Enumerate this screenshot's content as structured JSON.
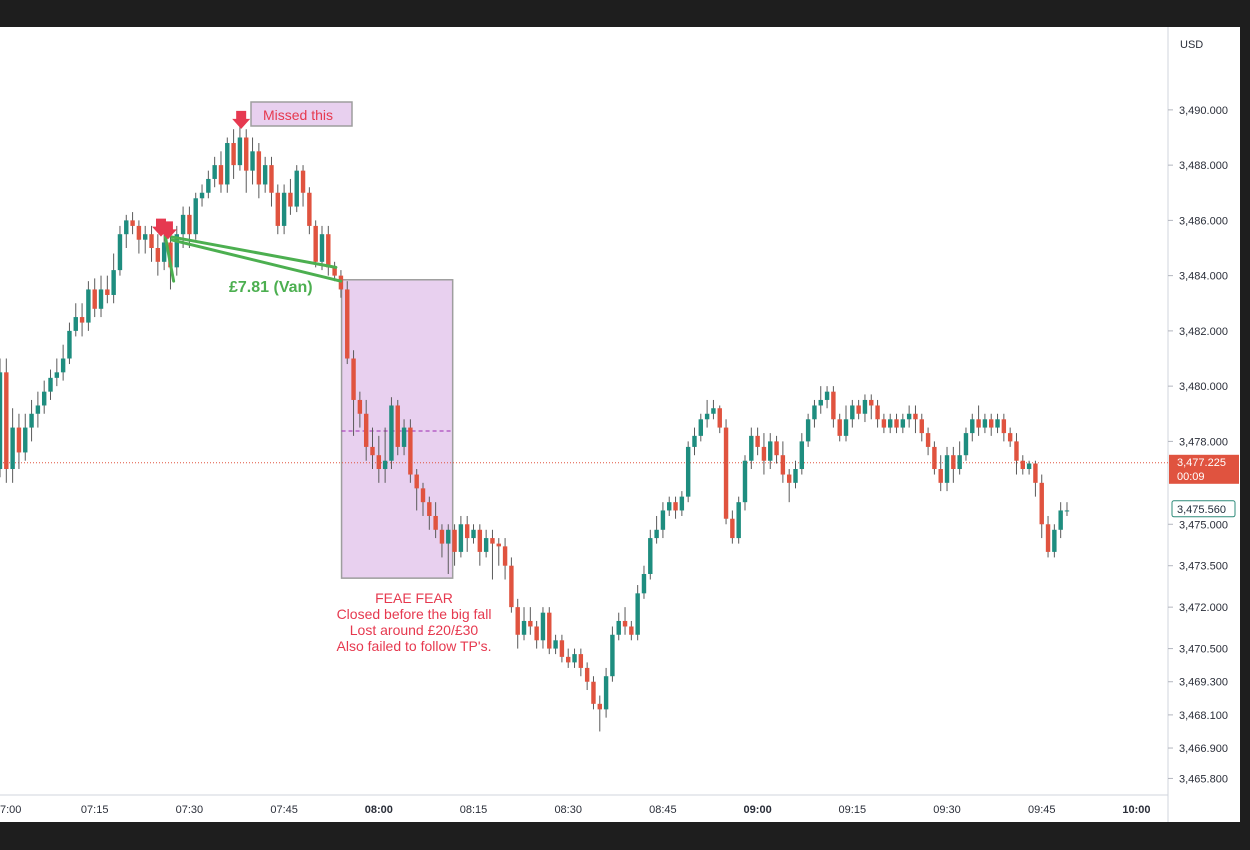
{
  "chart_data": {
    "type": "candlestick",
    "currency_label": "USD",
    "y_range": [
      3465.2,
      3493.0
    ],
    "x_range_minutes": [
      420,
      605
    ],
    "price_ticks": [
      "3,490.000",
      "3,488.000",
      "3,486.000",
      "3,484.000",
      "3,482.000",
      "3,480.000",
      "3,478.000",
      "3,475.000",
      "3,473.500",
      "3,472.000",
      "3,470.500",
      "3,469.300",
      "3,468.100",
      "3,466.900",
      "3,465.800"
    ],
    "time_ticks": [
      {
        "label": "7:00",
        "t": 420,
        "bold": false
      },
      {
        "label": "07:15",
        "t": 435,
        "bold": false
      },
      {
        "label": "07:30",
        "t": 450,
        "bold": false
      },
      {
        "label": "07:45",
        "t": 465,
        "bold": false
      },
      {
        "label": "08:00",
        "t": 480,
        "bold": true
      },
      {
        "label": "08:15",
        "t": 495,
        "bold": false
      },
      {
        "label": "08:30",
        "t": 510,
        "bold": false
      },
      {
        "label": "08:45",
        "t": 525,
        "bold": false
      },
      {
        "label": "09:00",
        "t": 540,
        "bold": true
      },
      {
        "label": "09:15",
        "t": 555,
        "bold": false
      },
      {
        "label": "09:30",
        "t": 570,
        "bold": false
      },
      {
        "label": "09:45",
        "t": 585,
        "bold": false
      },
      {
        "label": "10:00",
        "t": 600,
        "bold": true
      }
    ],
    "last_price": {
      "label": "3,477.225",
      "countdown": "00:09",
      "value": 3477.225,
      "color": "#e0533f"
    },
    "crosshair_price": {
      "label": "3,475.560",
      "value": 3475.56,
      "color": "#2e8b7a"
    },
    "colors": {
      "up": "#1e8d7f",
      "down": "#e0533f",
      "wick": "#5a5a5a",
      "box_fill": "#e8d0ef",
      "box_stroke": "#9e9e9e",
      "trend_line": "#4caf50",
      "arrow": "#e63950",
      "annotation_text": "#e6394f"
    },
    "candles": [
      [
        420,
        3477.0,
        3480.5,
        3476.7,
        3481.0
      ],
      [
        421,
        3480.5,
        3477.0,
        3476.5,
        3481.0
      ],
      [
        422,
        3477.0,
        3478.5,
        3476.5,
        3479.2
      ],
      [
        423,
        3478.5,
        3477.6,
        3477.0,
        3479.0
      ],
      [
        424,
        3477.6,
        3478.5,
        3477.3,
        3479.0
      ],
      [
        425,
        3478.5,
        3479.0,
        3478.0,
        3479.5
      ],
      [
        426,
        3479.0,
        3479.3,
        3478.5,
        3479.8
      ],
      [
        427,
        3479.3,
        3479.8,
        3479.0,
        3480.2
      ],
      [
        428,
        3479.8,
        3480.3,
        3479.5,
        3480.6
      ],
      [
        429,
        3480.3,
        3480.5,
        3480.0,
        3481.0
      ],
      [
        430,
        3480.5,
        3481.0,
        3480.2,
        3481.5
      ],
      [
        431,
        3481.0,
        3482.0,
        3480.8,
        3482.3
      ],
      [
        432,
        3482.0,
        3482.5,
        3481.8,
        3483.0
      ],
      [
        433,
        3482.5,
        3482.3,
        3481.8,
        3483.0
      ],
      [
        434,
        3482.3,
        3483.5,
        3482.0,
        3483.8
      ],
      [
        435,
        3483.5,
        3482.8,
        3482.5,
        3483.9
      ],
      [
        436,
        3482.8,
        3483.5,
        3482.5,
        3484.0
      ],
      [
        437,
        3483.5,
        3483.3,
        3483.0,
        3484.0
      ],
      [
        438,
        3483.3,
        3484.2,
        3483.0,
        3484.8
      ],
      [
        439,
        3484.2,
        3485.5,
        3484.0,
        3485.8
      ],
      [
        440,
        3485.5,
        3486.0,
        3485.0,
        3486.2
      ],
      [
        441,
        3486.0,
        3485.8,
        3485.5,
        3486.3
      ],
      [
        442,
        3485.8,
        3485.3,
        3484.8,
        3486.0
      ],
      [
        443,
        3485.3,
        3485.5,
        3484.8,
        3485.8
      ],
      [
        444,
        3485.5,
        3485.0,
        3484.5,
        3485.8
      ],
      [
        445,
        3485.0,
        3484.5,
        3484.0,
        3485.5
      ],
      [
        446,
        3484.5,
        3485.2,
        3484.2,
        3485.5
      ],
      [
        447,
        3485.2,
        3484.3,
        3483.5,
        3485.5
      ],
      [
        448,
        3484.3,
        3485.5,
        3484.0,
        3485.8
      ],
      [
        449,
        3485.5,
        3486.2,
        3485.0,
        3486.5
      ],
      [
        450,
        3486.2,
        3485.5,
        3485.0,
        3486.5
      ],
      [
        451,
        3485.5,
        3486.8,
        3485.3,
        3487.0
      ],
      [
        452,
        3486.8,
        3487.0,
        3486.5,
        3487.3
      ],
      [
        453,
        3487.0,
        3487.5,
        3486.8,
        3487.8
      ],
      [
        454,
        3487.5,
        3488.0,
        3487.2,
        3488.3
      ],
      [
        455,
        3488.0,
        3487.3,
        3487.0,
        3488.5
      ],
      [
        456,
        3487.3,
        3488.8,
        3487.0,
        3489.0
      ],
      [
        457,
        3488.8,
        3488.0,
        3487.5,
        3489.3
      ],
      [
        458,
        3488.0,
        3489.0,
        3487.8,
        3489.5
      ],
      [
        459,
        3489.0,
        3487.8,
        3487.0,
        3489.3
      ],
      [
        460,
        3487.8,
        3488.5,
        3487.3,
        3489.0
      ],
      [
        461,
        3488.5,
        3487.3,
        3486.8,
        3488.8
      ],
      [
        462,
        3487.3,
        3488.0,
        3487.0,
        3488.3
      ],
      [
        463,
        3488.0,
        3487.0,
        3486.5,
        3488.3
      ],
      [
        464,
        3487.0,
        3485.8,
        3485.5,
        3487.3
      ],
      [
        465,
        3485.8,
        3487.0,
        3485.5,
        3487.3
      ],
      [
        466,
        3487.0,
        3486.5,
        3486.2,
        3487.5
      ],
      [
        467,
        3486.5,
        3487.8,
        3486.3,
        3488.0
      ],
      [
        468,
        3487.8,
        3487.0,
        3486.5,
        3488.0
      ],
      [
        469,
        3487.0,
        3485.8,
        3485.5,
        3487.2
      ],
      [
        470,
        3485.8,
        3484.5,
        3484.3,
        3486.0
      ],
      [
        471,
        3484.5,
        3485.5,
        3484.2,
        3485.8
      ],
      [
        472,
        3485.5,
        3484.3,
        3484.0,
        3485.8
      ],
      [
        473,
        3484.3,
        3484.0,
        3483.8,
        3484.5
      ],
      [
        474,
        3484.0,
        3483.5,
        3483.2,
        3484.2
      ],
      [
        475,
        3483.5,
        3481.0,
        3480.8,
        3483.8
      ],
      [
        476,
        3481.0,
        3479.5,
        3478.2,
        3481.3
      ],
      [
        477,
        3479.5,
        3479.0,
        3478.5,
        3479.8
      ],
      [
        478,
        3479.0,
        3477.8,
        3477.3,
        3479.5
      ],
      [
        479,
        3477.8,
        3477.5,
        3477.0,
        3478.5
      ],
      [
        480,
        3477.5,
        3477.0,
        3476.5,
        3478.2
      ],
      [
        481,
        3477.0,
        3477.3,
        3476.5,
        3478.5
      ],
      [
        482,
        3477.3,
        3479.3,
        3477.0,
        3479.6
      ],
      [
        483,
        3479.3,
        3477.8,
        3477.5,
        3479.5
      ],
      [
        484,
        3477.8,
        3478.5,
        3477.5,
        3478.8
      ],
      [
        485,
        3478.5,
        3476.8,
        3476.5,
        3478.8
      ],
      [
        486,
        3476.8,
        3476.3,
        3475.5,
        3477.0
      ],
      [
        487,
        3476.3,
        3475.8,
        3475.3,
        3476.5
      ],
      [
        488,
        3475.8,
        3475.3,
        3474.8,
        3476.0
      ],
      [
        489,
        3475.3,
        3474.8,
        3474.5,
        3475.8
      ],
      [
        490,
        3474.8,
        3474.3,
        3473.8,
        3475.0
      ],
      [
        491,
        3474.3,
        3474.8,
        3473.2,
        3475.0
      ],
      [
        492,
        3474.8,
        3474.0,
        3473.5,
        3475.0
      ],
      [
        493,
        3474.0,
        3475.0,
        3473.8,
        3475.3
      ],
      [
        494,
        3475.0,
        3474.5,
        3474.0,
        3475.3
      ],
      [
        495,
        3474.5,
        3474.8,
        3474.3,
        3475.0
      ],
      [
        496,
        3474.8,
        3474.0,
        3473.5,
        3475.0
      ],
      [
        497,
        3474.0,
        3474.5,
        3473.8,
        3474.8
      ],
      [
        498,
        3474.5,
        3474.3,
        3473.0,
        3474.8
      ],
      [
        499,
        3474.3,
        3474.2,
        3473.5,
        3474.5
      ],
      [
        500,
        3474.2,
        3473.5,
        3473.0,
        3474.5
      ],
      [
        501,
        3473.5,
        3472.0,
        3471.8,
        3473.8
      ],
      [
        502,
        3472.0,
        3471.0,
        3470.5,
        3472.3
      ],
      [
        503,
        3471.0,
        3471.5,
        3470.8,
        3472.0
      ],
      [
        504,
        3471.5,
        3471.3,
        3471.0,
        3472.0
      ],
      [
        505,
        3471.3,
        3470.8,
        3470.5,
        3471.5
      ],
      [
        506,
        3470.8,
        3471.8,
        3470.5,
        3472.0
      ],
      [
        507,
        3471.8,
        3470.5,
        3470.3,
        3472.0
      ],
      [
        508,
        3470.5,
        3470.8,
        3470.3,
        3471.0
      ],
      [
        509,
        3470.8,
        3470.2,
        3470.0,
        3471.0
      ],
      [
        510,
        3470.2,
        3470.0,
        3469.8,
        3470.5
      ],
      [
        511,
        3470.0,
        3470.3,
        3469.8,
        3470.5
      ],
      [
        512,
        3470.3,
        3469.8,
        3469.5,
        3470.5
      ],
      [
        513,
        3469.8,
        3469.3,
        3469.0,
        3470.0
      ],
      [
        514,
        3469.3,
        3468.5,
        3468.3,
        3469.5
      ],
      [
        515,
        3468.5,
        3468.3,
        3467.5,
        3468.8
      ],
      [
        516,
        3468.3,
        3469.5,
        3468.0,
        3469.8
      ],
      [
        517,
        3469.5,
        3471.0,
        3469.3,
        3471.3
      ],
      [
        518,
        3471.0,
        3471.5,
        3470.8,
        3471.8
      ],
      [
        519,
        3471.5,
        3471.3,
        3471.0,
        3472.0
      ],
      [
        520,
        3471.3,
        3471.0,
        3470.8,
        3471.5
      ],
      [
        521,
        3471.0,
        3472.5,
        3470.8,
        3472.8
      ],
      [
        522,
        3472.5,
        3473.2,
        3472.3,
        3473.5
      ],
      [
        523,
        3473.2,
        3474.5,
        3473.0,
        3474.8
      ],
      [
        524,
        3474.5,
        3474.8,
        3474.3,
        3475.3
      ],
      [
        525,
        3474.8,
        3475.5,
        3474.5,
        3475.8
      ],
      [
        526,
        3475.5,
        3475.8,
        3475.3,
        3476.0
      ],
      [
        527,
        3475.8,
        3475.5,
        3475.2,
        3476.0
      ],
      [
        528,
        3475.5,
        3476.0,
        3475.3,
        3476.2
      ],
      [
        529,
        3476.0,
        3477.8,
        3475.8,
        3478.0
      ],
      [
        530,
        3477.8,
        3478.2,
        3477.5,
        3478.5
      ],
      [
        531,
        3478.2,
        3478.8,
        3478.0,
        3479.0
      ],
      [
        532,
        3478.8,
        3479.0,
        3478.5,
        3479.5
      ],
      [
        533,
        3479.0,
        3479.2,
        3478.8,
        3479.5
      ],
      [
        534,
        3479.2,
        3478.5,
        3478.3,
        3479.3
      ],
      [
        535,
        3478.5,
        3475.2,
        3475.0,
        3478.8
      ],
      [
        536,
        3475.2,
        3474.5,
        3474.3,
        3475.5
      ],
      [
        537,
        3474.5,
        3475.8,
        3474.3,
        3476.0
      ],
      [
        538,
        3475.8,
        3477.3,
        3475.5,
        3477.5
      ],
      [
        539,
        3477.3,
        3478.2,
        3477.0,
        3478.5
      ],
      [
        540,
        3478.2,
        3477.8,
        3477.5,
        3478.5
      ],
      [
        541,
        3477.8,
        3477.3,
        3476.8,
        3478.3
      ],
      [
        542,
        3477.3,
        3478.0,
        3477.0,
        3478.3
      ],
      [
        543,
        3478.0,
        3477.5,
        3477.2,
        3478.2
      ],
      [
        544,
        3477.5,
        3476.8,
        3476.5,
        3478.0
      ],
      [
        545,
        3476.8,
        3476.5,
        3475.8,
        3477.0
      ],
      [
        546,
        3476.5,
        3477.0,
        3476.3,
        3477.3
      ],
      [
        547,
        3477.0,
        3478.0,
        3476.8,
        3478.3
      ],
      [
        548,
        3478.0,
        3478.8,
        3477.8,
        3479.0
      ],
      [
        549,
        3478.8,
        3479.3,
        3478.5,
        3479.5
      ],
      [
        550,
        3479.3,
        3479.5,
        3479.0,
        3480.0
      ],
      [
        551,
        3479.5,
        3479.8,
        3479.2,
        3480.0
      ],
      [
        552,
        3479.8,
        3478.8,
        3478.5,
        3480.0
      ],
      [
        553,
        3478.8,
        3478.2,
        3478.0,
        3479.0
      ],
      [
        554,
        3478.2,
        3478.8,
        3478.0,
        3479.3
      ],
      [
        555,
        3478.8,
        3479.3,
        3478.5,
        3479.5
      ],
      [
        556,
        3479.3,
        3479.0,
        3478.8,
        3479.5
      ],
      [
        557,
        3479.0,
        3479.5,
        3478.7,
        3479.7
      ],
      [
        558,
        3479.5,
        3479.3,
        3478.8,
        3479.7
      ],
      [
        559,
        3479.3,
        3478.8,
        3478.5,
        3479.5
      ],
      [
        560,
        3478.8,
        3478.5,
        3478.3,
        3479.0
      ],
      [
        561,
        3478.5,
        3478.8,
        3478.3,
        3479.0
      ],
      [
        562,
        3478.8,
        3478.5,
        3478.3,
        3479.0
      ],
      [
        563,
        3478.5,
        3478.8,
        3478.3,
        3479.0
      ],
      [
        564,
        3478.8,
        3479.0,
        3478.5,
        3479.3
      ],
      [
        565,
        3479.0,
        3478.8,
        3478.3,
        3479.3
      ],
      [
        566,
        3478.8,
        3478.3,
        3478.0,
        3479.0
      ],
      [
        567,
        3478.3,
        3477.8,
        3477.5,
        3478.5
      ],
      [
        568,
        3477.8,
        3477.0,
        3476.8,
        3478.0
      ],
      [
        569,
        3477.0,
        3476.5,
        3476.2,
        3477.5
      ],
      [
        570,
        3476.5,
        3477.5,
        3476.2,
        3477.8
      ],
      [
        571,
        3477.5,
        3477.0,
        3476.5,
        3477.8
      ],
      [
        572,
        3477.0,
        3477.5,
        3476.8,
        3478.0
      ],
      [
        573,
        3477.5,
        3478.3,
        3477.3,
        3478.5
      ],
      [
        574,
        3478.3,
        3478.8,
        3478.0,
        3479.0
      ],
      [
        575,
        3478.8,
        3478.5,
        3478.2,
        3479.3
      ],
      [
        576,
        3478.5,
        3478.8,
        3478.3,
        3479.0
      ],
      [
        577,
        3478.8,
        3478.5,
        3478.2,
        3479.0
      ],
      [
        578,
        3478.5,
        3478.8,
        3478.3,
        3479.0
      ],
      [
        579,
        3478.8,
        3478.3,
        3478.0,
        3479.0
      ],
      [
        580,
        3478.3,
        3478.0,
        3477.8,
        3478.5
      ],
      [
        581,
        3478.0,
        3477.3,
        3476.8,
        3478.3
      ],
      [
        582,
        3477.3,
        3477.0,
        3476.8,
        3477.5
      ],
      [
        583,
        3477.0,
        3477.2,
        3476.8,
        3477.3
      ],
      [
        584,
        3477.2,
        3476.5,
        3476.0,
        3477.3
      ],
      [
        585,
        3476.5,
        3475.0,
        3474.5,
        3476.8
      ],
      [
        586,
        3475.0,
        3474.0,
        3473.8,
        3475.3
      ],
      [
        587,
        3474.0,
        3474.8,
        3473.8,
        3475.0
      ],
      [
        588,
        3474.8,
        3475.5,
        3474.5,
        3475.8
      ],
      [
        589,
        3475.5,
        3475.5,
        3475.3,
        3475.8
      ]
    ],
    "annotations": {
      "missed_label": "Missed this",
      "profit_label": "£7.81 (Van)",
      "fear_lines": [
        "FEAE FEAR",
        "Closed before the big fall",
        "Lost around £20/£30",
        "Also failed to follow TP's."
      ]
    }
  }
}
